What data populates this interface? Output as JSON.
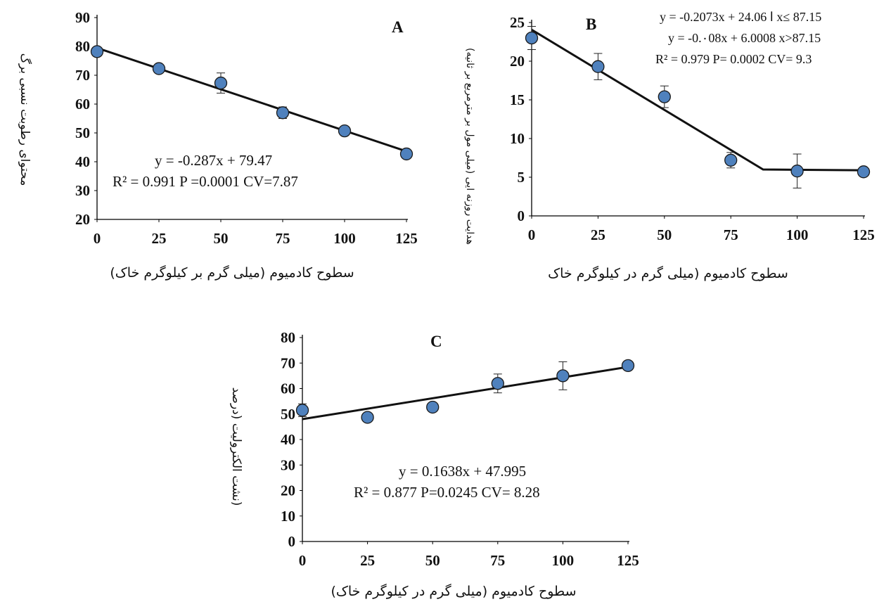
{
  "chart_data": [
    {
      "panel": "A",
      "type": "scatter",
      "xlabel": "سطوح کادمیوم (میلی گرم بر کیلوگرم خاک)",
      "ylabel": "محتوای رطوبت نسبی برگ",
      "xlim": [
        0,
        125
      ],
      "ylim": [
        20,
        90
      ],
      "xticks": [
        "0",
        "25",
        "50",
        "75",
        "100",
        "125"
      ],
      "yticks": [
        "20",
        "30",
        "40",
        "50",
        "60",
        "70",
        "80",
        "90"
      ],
      "points": [
        {
          "x": 0,
          "y": 78.2,
          "err": 1.2
        },
        {
          "x": 25,
          "y": 72.3,
          "err": 1.0
        },
        {
          "x": 50,
          "y": 67.3,
          "err": 3.5
        },
        {
          "x": 75,
          "y": 57.0,
          "err": 2.0
        },
        {
          "x": 100,
          "y": 50.7,
          "err": 1.0
        },
        {
          "x": 125,
          "y": 42.7,
          "err": 0.8
        }
      ],
      "fit": [
        {
          "x": 0,
          "y": 79.47
        },
        {
          "x": 125,
          "y": 43.6
        }
      ],
      "equation_lines": [
        "y = -0.287x + 79.47",
        "R² = 0.991 P =0.0001 CV=7.87"
      ]
    },
    {
      "panel": "B",
      "type": "scatter",
      "xlabel": "سطوح کادمیوم (میلی گرم در کیلوگرم خاک",
      "ylabel": "هدایت روزنه ایی (میلی مول بر مترمربع بر ثانیه)",
      "xlim": [
        0,
        125
      ],
      "ylim": [
        0,
        25
      ],
      "xticks": [
        "0",
        "25",
        "50",
        "75",
        "100",
        "125"
      ],
      "yticks": [
        "0",
        "5",
        "10",
        "15",
        "20",
        "25"
      ],
      "points": [
        {
          "x": 0,
          "y": 23.0,
          "err": 1.5
        },
        {
          "x": 25,
          "y": 19.3,
          "err": 1.7
        },
        {
          "x": 50,
          "y": 15.4,
          "err": 1.4
        },
        {
          "x": 75,
          "y": 7.2,
          "err": 1.0
        },
        {
          "x": 100,
          "y": 5.8,
          "err": 2.2
        },
        {
          "x": 125,
          "y": 5.7,
          "err": 0.3
        }
      ],
      "fit": [
        {
          "x": 0,
          "y": 24.06
        },
        {
          "x": 87.15,
          "y": 6.0
        },
        {
          "x": 125,
          "y": 5.9
        }
      ],
      "equation_lines": [
        "y = -0.2073x + 24.06 ا x≤ 87.15",
        "y = -0.٠08x + 6.0008 x>87.15",
        "R² = 0.979 P= 0.0002 CV= 9.3"
      ]
    },
    {
      "panel": "C",
      "type": "scatter",
      "xlabel": "سطوح کادمیوم (میلی گرم در کیلوگرم خاک)",
      "ylabel": "(نشت الکترولیت (درصد",
      "xlim": [
        0,
        125
      ],
      "ylim": [
        0,
        80
      ],
      "xticks": [
        "0",
        "25",
        "50",
        "75",
        "100",
        "125"
      ],
      "yticks": [
        "0",
        "10",
        "20",
        "30",
        "40",
        "50",
        "60",
        "70",
        "80"
      ],
      "points": [
        {
          "x": 0,
          "y": 51.5,
          "err": 2.5
        },
        {
          "x": 25,
          "y": 48.7,
          "err": 1.0
        },
        {
          "x": 50,
          "y": 52.7,
          "err": 1.0
        },
        {
          "x": 75,
          "y": 62.0,
          "err": 3.7
        },
        {
          "x": 100,
          "y": 65.0,
          "err": 5.5
        },
        {
          "x": 125,
          "y": 69.0,
          "err": 1.0
        }
      ],
      "fit": [
        {
          "x": 0,
          "y": 47.995
        },
        {
          "x": 125,
          "y": 68.47
        }
      ],
      "equation_lines": [
        "y = 0.1638x + 47.995",
        "R² = 0.877 P=0.0245 CV= 8.28"
      ]
    }
  ],
  "style": {
    "marker_fill": "#4f81bd",
    "marker_stroke": "#1a1a1a",
    "line_color": "#111111",
    "axis_color": "#000000"
  }
}
